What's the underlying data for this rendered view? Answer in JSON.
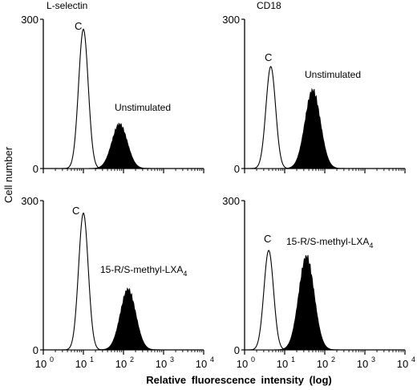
{
  "figure": {
    "ylabel": "Cell number",
    "xlabel": "Relative fluorescence intensity (log)",
    "colors": {
      "ink": "#000000",
      "filled": "#000000",
      "open": "#ffffff"
    }
  },
  "chart_data": [
    {
      "type": "area",
      "title": "L-selectin",
      "x_scale": "log",
      "xlim": [
        1,
        10000
      ],
      "ylim": [
        0,
        300
      ],
      "yticks": [
        "300",
        "0"
      ],
      "xtick_labels_shown": false,
      "grid": false,
      "series": [
        {
          "name": "C",
          "style": "open",
          "peak_x": 10,
          "peak_y": 280
        },
        {
          "name": "Unstimulated",
          "style": "filled",
          "peak_x": 80,
          "peak_y": 88
        }
      ]
    },
    {
      "type": "area",
      "title": "CD18",
      "x_scale": "log",
      "xlim": [
        1,
        10000
      ],
      "ylim": [
        0,
        300
      ],
      "yticks": [
        "300",
        "0"
      ],
      "xtick_labels_shown": false,
      "grid": false,
      "series": [
        {
          "name": "C",
          "style": "open",
          "peak_x": 4.5,
          "peak_y": 205
        },
        {
          "name": "Unstimulated",
          "style": "filled",
          "peak_x": 50,
          "peak_y": 155
        }
      ]
    },
    {
      "type": "area",
      "title": "",
      "x_scale": "log",
      "xlim": [
        1,
        10000
      ],
      "ylim": [
        0,
        300
      ],
      "yticks": [
        "300",
        "0"
      ],
      "xtick_labels": [
        "10",
        "10",
        "10",
        "10",
        "10"
      ],
      "xtick_exponents": [
        "0",
        "1",
        "2",
        "3",
        "4"
      ],
      "grid": false,
      "series": [
        {
          "name": "C",
          "style": "open",
          "peak_x": 10,
          "peak_y": 275
        },
        {
          "name": "15-R/S-methyl-LXA",
          "name_subscript": "4",
          "style": "filled",
          "peak_x": 130,
          "peak_y": 120
        }
      ]
    },
    {
      "type": "area",
      "title": "",
      "x_scale": "log",
      "xlim": [
        1,
        10000
      ],
      "ylim": [
        0,
        300
      ],
      "yticks": [
        "300",
        "0"
      ],
      "xtick_labels": [
        "10",
        "10",
        "10",
        "10",
        "10"
      ],
      "xtick_exponents": [
        "0",
        "1",
        "2",
        "3",
        "4"
      ],
      "grid": false,
      "series": [
        {
          "name": "C",
          "style": "open",
          "peak_x": 4,
          "peak_y": 200
        },
        {
          "name": "15-R/S-methyl-LXA",
          "name_subscript": "4",
          "style": "filled",
          "peak_x": 35,
          "peak_y": 185
        }
      ]
    }
  ]
}
